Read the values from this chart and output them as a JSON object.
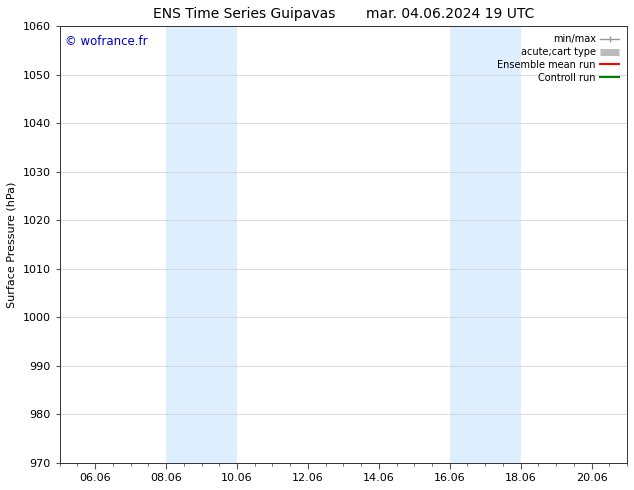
{
  "title_left": "ENS Time Series Guipavas",
  "title_right": "mar. 04.06.2024 19 UTC",
  "ylabel": "Surface Pressure (hPa)",
  "ylim": [
    970,
    1060
  ],
  "yticks": [
    970,
    980,
    990,
    1000,
    1010,
    1020,
    1030,
    1040,
    1050,
    1060
  ],
  "xlim_min": 0.0,
  "xlim_max": 16.0,
  "xtick_labels": [
    "06.06",
    "08.06",
    "10.06",
    "12.06",
    "14.06",
    "16.06",
    "18.06",
    "20.06"
  ],
  "xtick_positions": [
    1,
    3,
    5,
    7,
    9,
    11,
    13,
    15
  ],
  "shaded_regions": [
    {
      "xmin": 3.0,
      "xmax": 5.0
    },
    {
      "xmin": 11.0,
      "xmax": 13.0
    }
  ],
  "shaded_color": "#ddeeff",
  "watermark": "© wofrance.fr",
  "watermark_color": "#0000cc",
  "legend_entries": [
    {
      "label": "min/max",
      "color": "#999999",
      "lw": 1.0,
      "style": "errorbar"
    },
    {
      "label": "acute;cart type",
      "color": "#bbbbbb",
      "lw": 5.0,
      "style": "thick"
    },
    {
      "label": "Ensemble mean run",
      "color": "red",
      "lw": 1.5,
      "style": "line"
    },
    {
      "label": "Controll run",
      "color": "green",
      "lw": 1.5,
      "style": "line"
    }
  ],
  "bg_color": "#ffffff",
  "grid_color": "#cccccc",
  "title_fontsize": 10,
  "axis_fontsize": 8,
  "tick_fontsize": 8,
  "legend_fontsize": 7
}
